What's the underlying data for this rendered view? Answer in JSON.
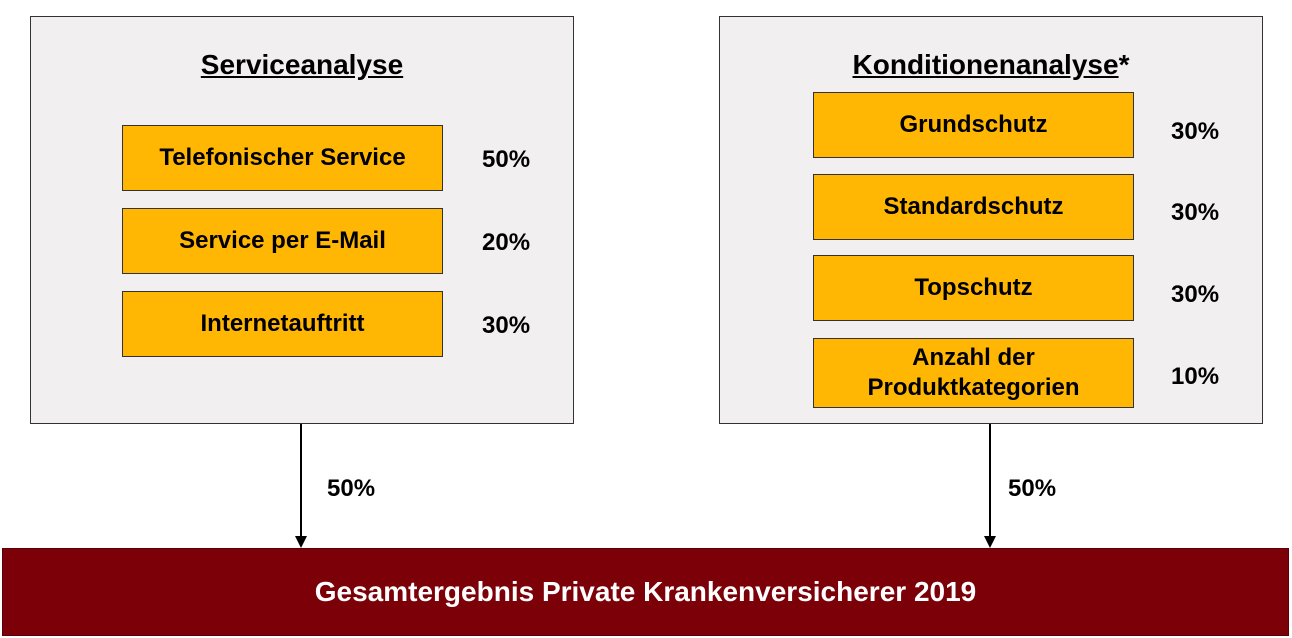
{
  "service": {
    "title": "Serviceanalyse",
    "items": [
      {
        "label": "Telefonischer Service",
        "pct": "50%"
      },
      {
        "label": "Service per E-Mail",
        "pct": "20%"
      },
      {
        "label": "Internetauftritt",
        "pct": "30%"
      }
    ],
    "weight": "50%"
  },
  "konditionen": {
    "title": "Konditionenanalyse",
    "title_suffix": "*",
    "items": [
      {
        "label": "Grundschutz",
        "pct": "30%"
      },
      {
        "label": "Standardschutz",
        "pct": "30%"
      },
      {
        "label": "Topschutz",
        "pct": "30%"
      },
      {
        "label": "Anzahl der Produktkategorien",
        "pct": "10%"
      }
    ],
    "weight": "50%"
  },
  "result": {
    "label": "Gesamtergebnis Private Krankenversicherer 2019"
  },
  "colors": {
    "panel_bg": "#f1efef",
    "box_fill": "#ffb703",
    "result_fill": "#7b0008",
    "result_text": "#ffffff"
  }
}
